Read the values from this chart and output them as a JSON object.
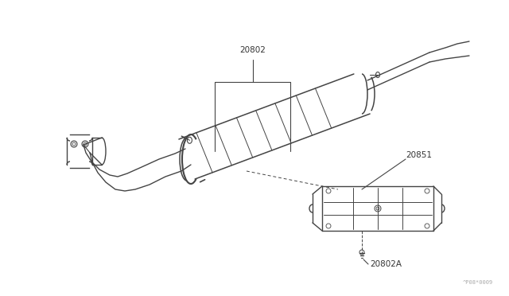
{
  "bg_color": "#ffffff",
  "line_color": "#444444",
  "label_color": "#333333",
  "fig_width": 6.4,
  "fig_height": 3.72,
  "dpi": 100,
  "watermark": "^P08*0009",
  "font_size": 7.5
}
